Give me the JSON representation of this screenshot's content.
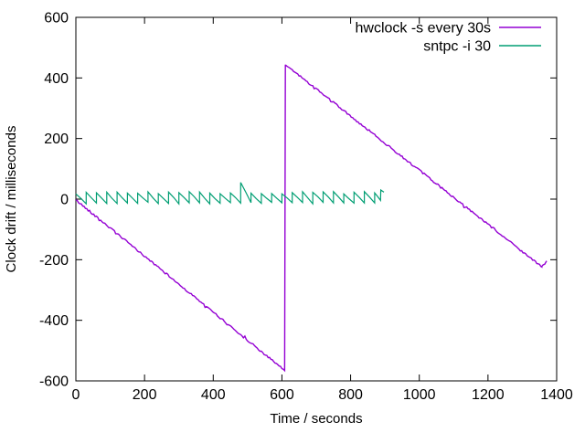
{
  "chart_data": {
    "type": "line",
    "title": "",
    "xlabel": "Time / seconds",
    "ylabel": "Clock drift / milliseconds",
    "xlim": [
      0,
      1400
    ],
    "ylim": [
      -600,
      600
    ],
    "xticks": [
      0,
      200,
      400,
      600,
      800,
      1000,
      1200,
      1400
    ],
    "yticks": [
      -600,
      -400,
      -200,
      0,
      200,
      400,
      600
    ],
    "grid": false,
    "legend": {
      "position": "top-right-inside"
    },
    "series": [
      {
        "name": "hwclock -s every 30s",
        "color": "#9400d3",
        "style": "noisy-line",
        "keypoints": [
          [
            0,
            -3
          ],
          [
            608,
            -566
          ],
          [
            610,
            444
          ],
          [
            1357,
            -224
          ],
          [
            1371,
            -204
          ]
        ],
        "noise_ms": 3,
        "sample_step_s": 4
      },
      {
        "name": "sntpc -i 30",
        "color": "#009e73",
        "style": "sawtooth",
        "t_start": 0,
        "t_end": 897,
        "period_s": 30,
        "peak_ms": 21,
        "valley_ms": -13,
        "peak_jitter_ms": 4,
        "valley_jitter_ms": 3,
        "anomalies": [
          {
            "t": 480,
            "peak_ms": 55
          }
        ],
        "end_spike": {
          "t": 888,
          "peak_ms": 30,
          "end_t": 897,
          "end_ms": 23
        }
      }
    ]
  }
}
